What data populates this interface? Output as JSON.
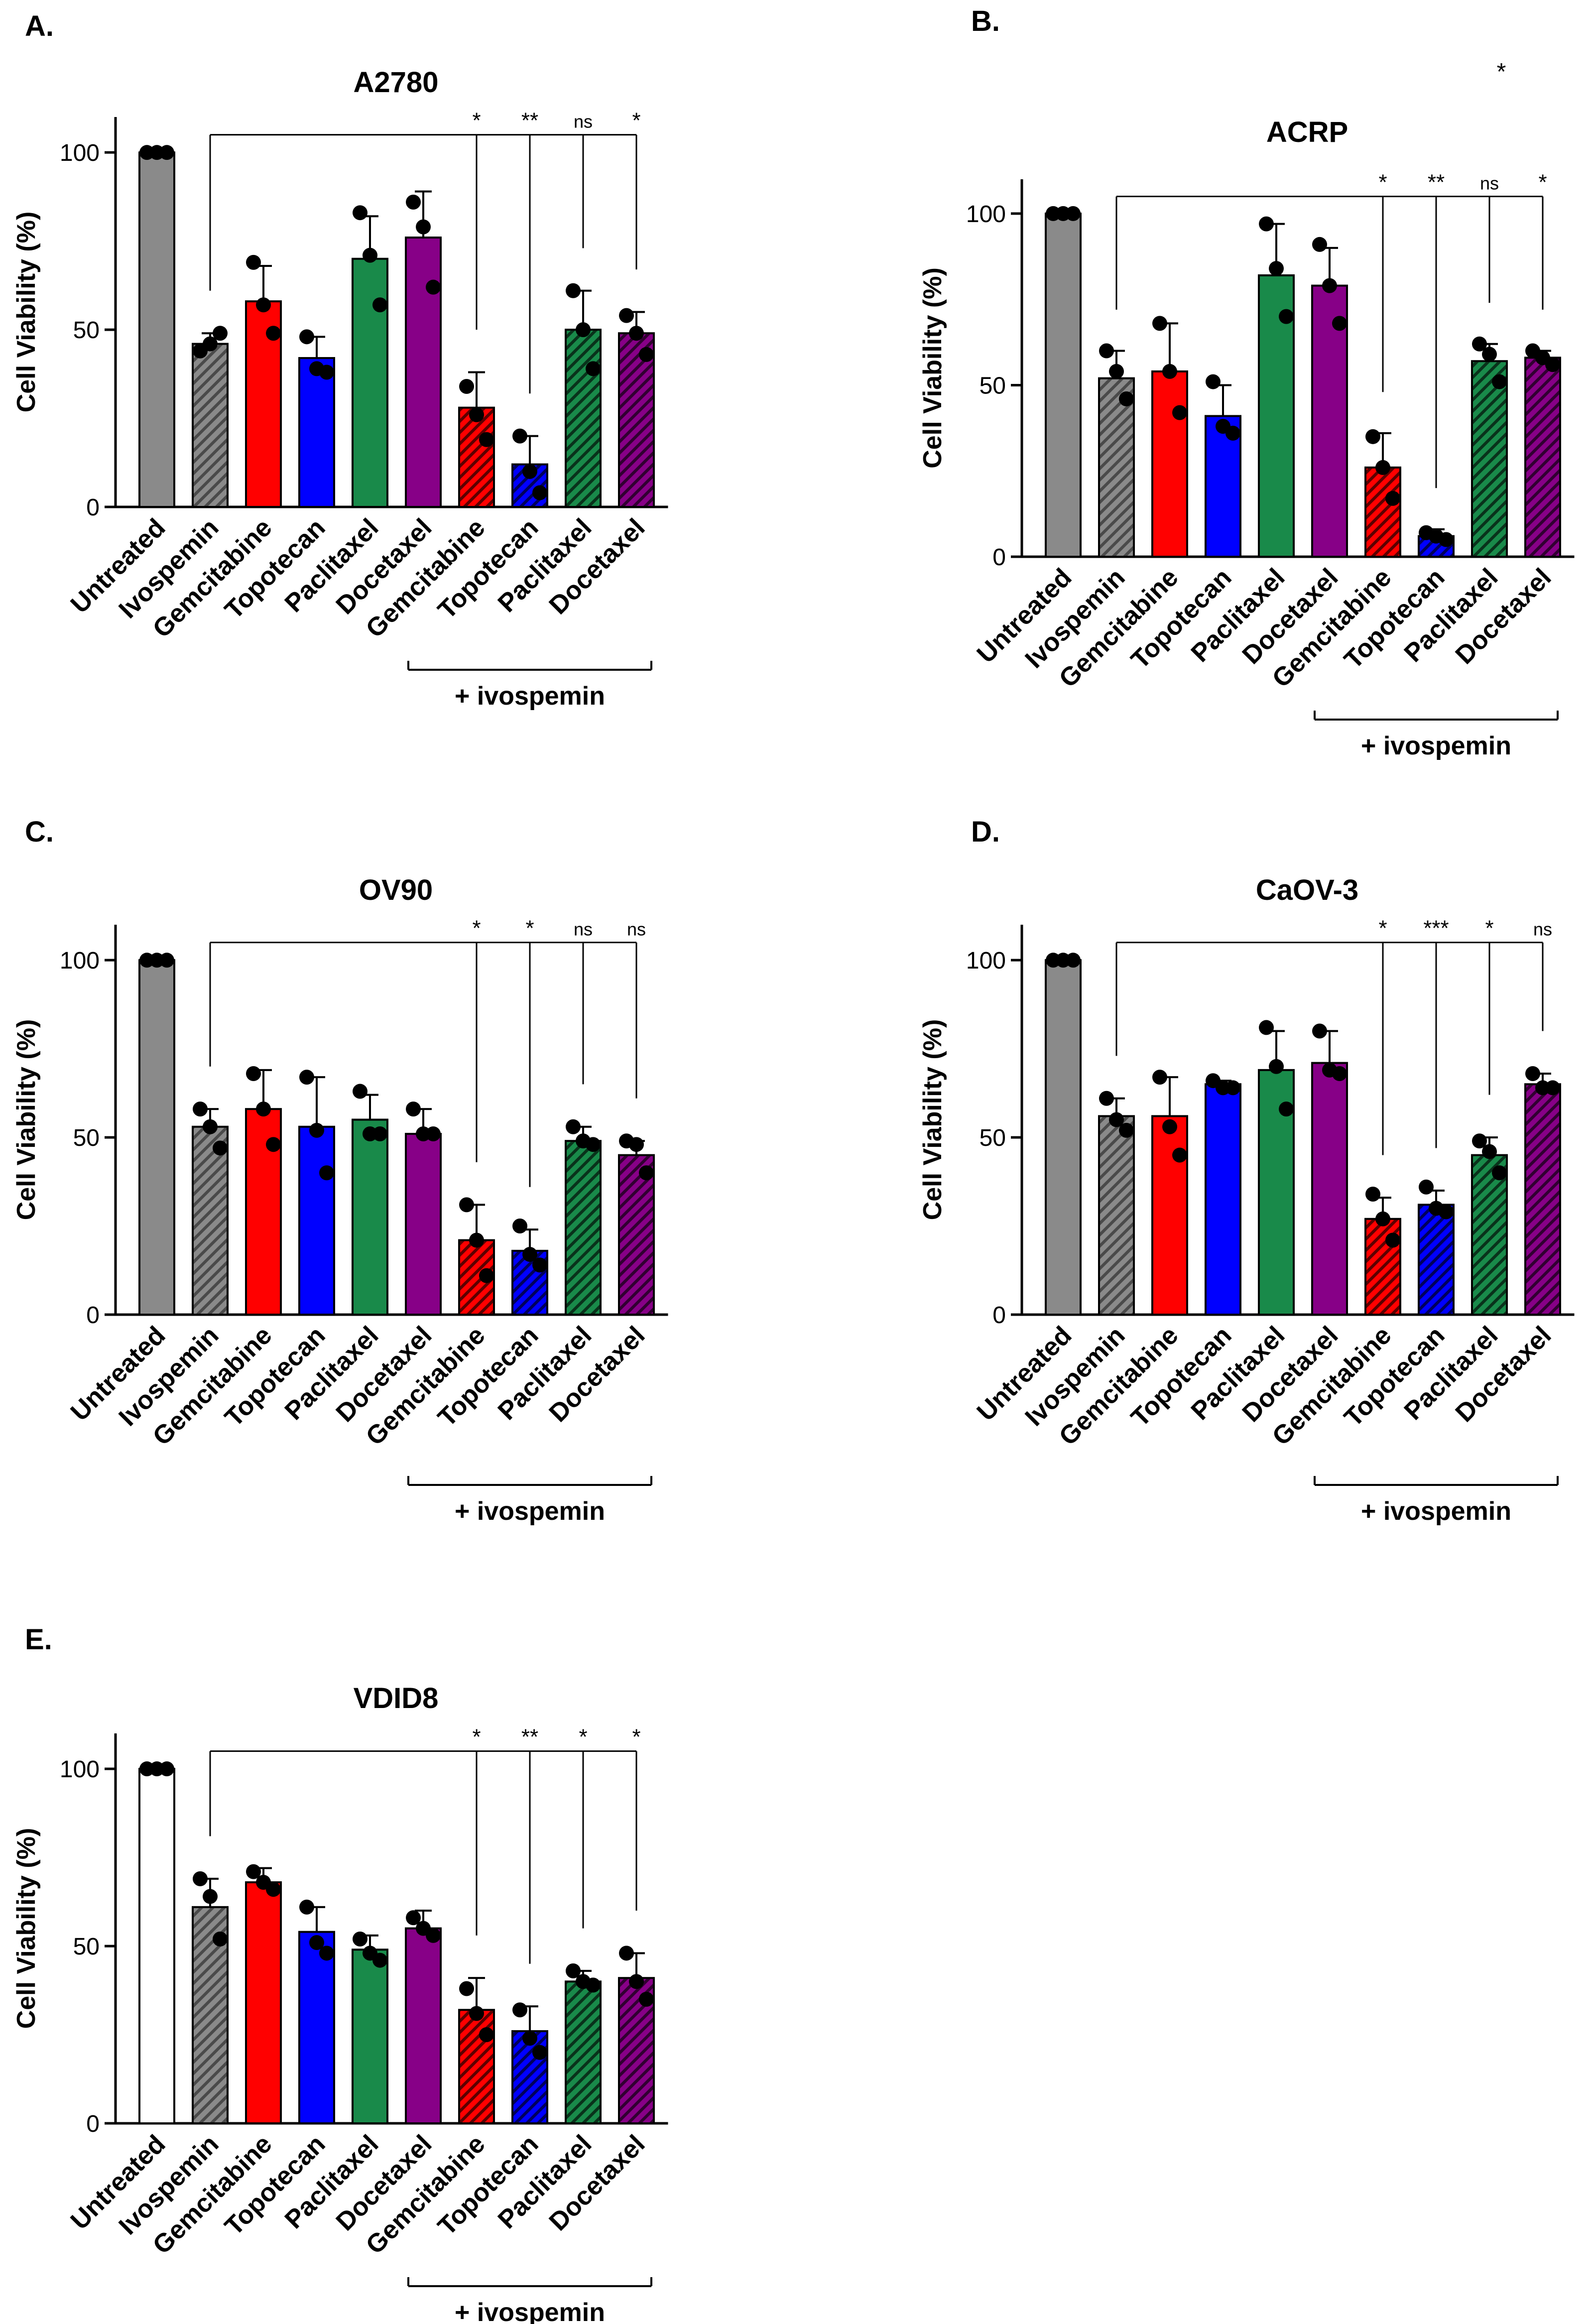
{
  "figure": {
    "ylabel": "Cell Viability (%)",
    "bracket_label": "+ ivospemin",
    "colors": {
      "gray": "#8a8a8a",
      "red": "#ff0000",
      "blue": "#0000ff",
      "green": "#198a4a",
      "purple": "#870087",
      "dot": "#000000",
      "axis": "#000000"
    }
  },
  "chart_data": [
    {
      "type": "bar",
      "panel": "A.",
      "title": "A2780",
      "ylabel": "Cell Viability (%)",
      "ylim": [
        0,
        110
      ],
      "yticks": [
        0,
        50,
        100
      ],
      "categories": [
        "Untreated",
        "Ivospemin",
        "Gemcitabine",
        "Topotecan",
        "Paclitaxel",
        "Docetaxel",
        "Gemcitabine",
        "Topotecan",
        "Paclitaxel",
        "Docetaxel"
      ],
      "values": [
        100,
        46,
        58,
        42,
        70,
        76,
        28,
        12,
        50,
        49
      ],
      "errors": [
        0,
        3,
        10,
        6,
        12,
        13,
        10,
        8,
        11,
        6
      ],
      "points": [
        [
          100,
          100,
          100
        ],
        [
          44,
          46,
          49
        ],
        [
          69,
          57,
          49
        ],
        [
          48,
          39,
          38
        ],
        [
          83,
          71,
          57
        ],
        [
          86,
          79,
          62
        ],
        [
          34,
          26,
          19
        ],
        [
          20,
          10,
          4
        ],
        [
          61,
          50,
          39
        ],
        [
          54,
          49,
          43
        ]
      ],
      "colors": [
        "gray",
        "gray",
        "red",
        "blue",
        "green",
        "purple",
        "red",
        "blue",
        "green",
        "purple"
      ],
      "hatched": [
        false,
        true,
        false,
        false,
        false,
        false,
        true,
        true,
        true,
        true
      ],
      "significance": [
        "*",
        "**",
        "ns",
        "*"
      ],
      "bracket_label": "+ ivospemin",
      "extra_annotation": ""
    },
    {
      "type": "bar",
      "panel": "B.",
      "title": "ACRP",
      "ylabel": "Cell Viability (%)",
      "ylim": [
        0,
        110
      ],
      "yticks": [
        0,
        50,
        100
      ],
      "categories": [
        "Untreated",
        "Ivospemin",
        "Gemcitabine",
        "Topotecan",
        "Paclitaxel",
        "Docetaxel",
        "Gemcitabine",
        "Topotecan",
        "Paclitaxel",
        "Docetaxel"
      ],
      "values": [
        100,
        52,
        54,
        41,
        82,
        79,
        26,
        6,
        57,
        58
      ],
      "errors": [
        0,
        8,
        14,
        9,
        15,
        11,
        10,
        2,
        5,
        2
      ],
      "points": [
        [
          100,
          100,
          100
        ],
        [
          60,
          54,
          46
        ],
        [
          68,
          54,
          42
        ],
        [
          51,
          38,
          36
        ],
        [
          97,
          84,
          70
        ],
        [
          91,
          79,
          68
        ],
        [
          35,
          26,
          17
        ],
        [
          7,
          6,
          5
        ],
        [
          62,
          59,
          51
        ],
        [
          60,
          58,
          56
        ]
      ],
      "colors": [
        "gray",
        "gray",
        "red",
        "blue",
        "green",
        "purple",
        "red",
        "blue",
        "green",
        "purple"
      ],
      "hatched": [
        false,
        true,
        false,
        false,
        false,
        false,
        true,
        true,
        true,
        true
      ],
      "significance": [
        "*",
        "**",
        "ns",
        "*"
      ],
      "bracket_label": "+ ivospemin",
      "extra_annotation": "*"
    },
    {
      "type": "bar",
      "panel": "C.",
      "title": "OV90",
      "ylabel": "Cell Viability (%)",
      "ylim": [
        0,
        110
      ],
      "yticks": [
        0,
        50,
        100
      ],
      "categories": [
        "Untreated",
        "Ivospemin",
        "Gemcitabine",
        "Topotecan",
        "Paclitaxel",
        "Docetaxel",
        "Gemcitabine",
        "Topotecan",
        "Paclitaxel",
        "Docetaxel"
      ],
      "values": [
        100,
        53,
        58,
        53,
        55,
        51,
        21,
        18,
        49,
        45
      ],
      "errors": [
        0,
        5,
        11,
        14,
        7,
        7,
        10,
        6,
        4,
        4
      ],
      "points": [
        [
          100,
          100,
          100
        ],
        [
          58,
          53,
          47
        ],
        [
          68,
          58,
          48
        ],
        [
          67,
          52,
          40
        ],
        [
          63,
          51,
          51
        ],
        [
          58,
          51,
          51
        ],
        [
          31,
          21,
          11
        ],
        [
          25,
          17,
          14
        ],
        [
          53,
          49,
          48
        ],
        [
          49,
          48,
          40
        ]
      ],
      "colors": [
        "gray",
        "gray",
        "red",
        "blue",
        "green",
        "purple",
        "red",
        "blue",
        "green",
        "purple"
      ],
      "hatched": [
        false,
        true,
        false,
        false,
        false,
        false,
        true,
        true,
        true,
        true
      ],
      "significance": [
        "*",
        "*",
        "ns",
        "ns"
      ],
      "bracket_label": "+ ivospemin",
      "extra_annotation": ""
    },
    {
      "type": "bar",
      "panel": "D.",
      "title": "CaOV-3",
      "ylabel": "Cell Viability (%)",
      "ylim": [
        0,
        110
      ],
      "yticks": [
        0,
        50,
        100
      ],
      "categories": [
        "Untreated",
        "Ivospemin",
        "Gemcitabine",
        "Topotecan",
        "Paclitaxel",
        "Docetaxel",
        "Gemcitabine",
        "Topotecan",
        "Paclitaxel",
        "Docetaxel"
      ],
      "values": [
        100,
        56,
        56,
        65,
        69,
        71,
        27,
        31,
        45,
        65
      ],
      "errors": [
        0,
        5,
        11,
        1,
        11,
        9,
        6,
        4,
        5,
        3
      ],
      "points": [
        [
          100,
          100,
          100
        ],
        [
          61,
          55,
          52
        ],
        [
          67,
          53,
          45
        ],
        [
          66,
          64,
          64
        ],
        [
          81,
          70,
          58
        ],
        [
          80,
          69,
          68
        ],
        [
          34,
          27,
          21
        ],
        [
          36,
          30,
          29
        ],
        [
          49,
          46,
          40
        ],
        [
          68,
          64,
          64
        ]
      ],
      "colors": [
        "gray",
        "gray",
        "red",
        "blue",
        "green",
        "purple",
        "red",
        "blue",
        "green",
        "purple"
      ],
      "hatched": [
        false,
        true,
        false,
        false,
        false,
        false,
        true,
        true,
        true,
        true
      ],
      "significance": [
        "*",
        "***",
        "*",
        "ns"
      ],
      "bracket_label": "+ ivospemin",
      "extra_annotation": ""
    },
    {
      "type": "bar",
      "panel": "E.",
      "title": "VDID8",
      "ylabel": "Cell Viability (%)",
      "ylim": [
        0,
        110
      ],
      "yticks": [
        0,
        50,
        100
      ],
      "categories": [
        "Untreated",
        "Ivospemin",
        "Gemcitabine",
        "Topotecan",
        "Paclitaxel",
        "Docetaxel",
        "Gemcitabine",
        "Topotecan",
        "Paclitaxel",
        "Docetaxel"
      ],
      "values": [
        100,
        61,
        68,
        54,
        49,
        55,
        32,
        26,
        40,
        41
      ],
      "errors": [
        0,
        8,
        4,
        7,
        4,
        5,
        9,
        7,
        3,
        7
      ],
      "points": [
        [
          100,
          100,
          100
        ],
        [
          69,
          64,
          52
        ],
        [
          71,
          68,
          66
        ],
        [
          61,
          51,
          48
        ],
        [
          52,
          48,
          46
        ],
        [
          58,
          55,
          53
        ],
        [
          38,
          31,
          25
        ],
        [
          32,
          24,
          20
        ],
        [
          43,
          40,
          39
        ],
        [
          48,
          40,
          35
        ]
      ],
      "colors": [
        "white",
        "gray",
        "red",
        "blue",
        "green",
        "purple",
        "red",
        "blue",
        "green",
        "purple"
      ],
      "hatched": [
        false,
        true,
        false,
        false,
        false,
        false,
        true,
        true,
        true,
        true
      ],
      "significance": [
        "*",
        "**",
        "*",
        "*"
      ],
      "bracket_label": "+ ivospemin",
      "extra_annotation": ""
    }
  ]
}
